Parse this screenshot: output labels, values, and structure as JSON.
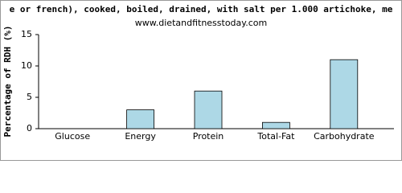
{
  "chart_data": {
    "type": "bar",
    "title": "e or french), cooked, boiled, drained, with salt per 1.000 artichoke, me",
    "subtitle": "www.dietandfitnesstoday.com",
    "y_label": "Percentage of RDH (%)",
    "categories": [
      "Glucose",
      "Energy",
      "Protein",
      "Total-Fat",
      "Carbohydrate"
    ],
    "values": [
      0,
      3,
      6,
      1,
      11
    ],
    "color": "#add8e6",
    "ylim": [
      0,
      15
    ],
    "yticks": [
      0,
      5,
      10,
      15
    ],
    "grid": false
  }
}
